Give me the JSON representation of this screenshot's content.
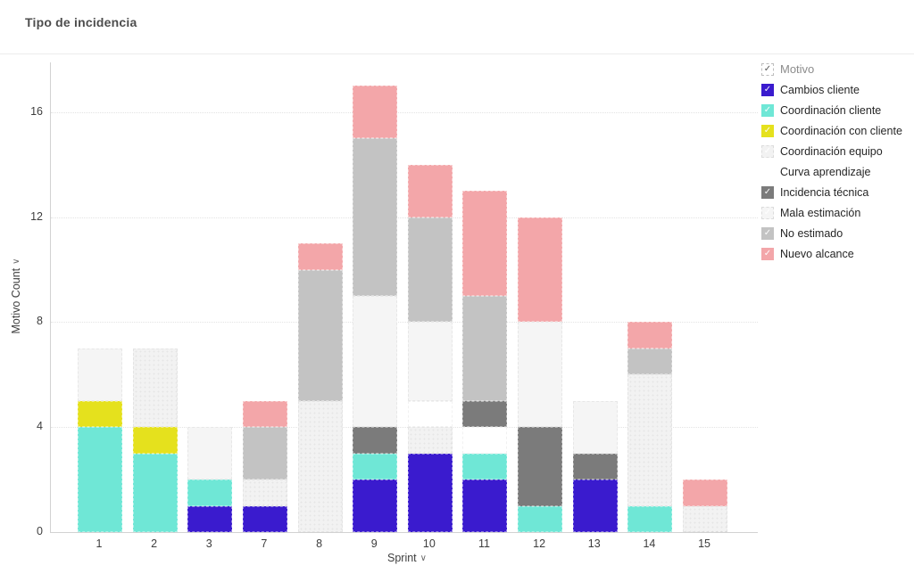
{
  "title": "Tipo de incidencia",
  "legend": {
    "header": {
      "label": "Motivo",
      "checked": true,
      "check_icon": "check-icon"
    }
  },
  "axes": {
    "y_title": "Motivo Count",
    "x_title": "Sprint",
    "y_title_chevron": "chevron-down-icon",
    "x_title_chevron": "chevron-down-icon"
  },
  "chart_data": {
    "type": "bar",
    "stacked": true,
    "title": "Tipo de incidencia",
    "xlabel": "Sprint",
    "ylabel": "Motivo Count",
    "categories": [
      "1",
      "2",
      "3",
      "7",
      "8",
      "9",
      "10",
      "11",
      "12",
      "13",
      "14",
      "15"
    ],
    "yticks": [
      0,
      4,
      8,
      12,
      16
    ],
    "ylim": [
      0,
      17.9
    ],
    "grid": "horizontal",
    "legend_position": "right",
    "totals": [
      7,
      7,
      4,
      5,
      11,
      17,
      14,
      13,
      12,
      5,
      8,
      2
    ],
    "series": [
      {
        "name": "Cambios cliente",
        "color": "#3a1bce",
        "pattern": "solid",
        "values": [
          0,
          0,
          1,
          1,
          0,
          2,
          3,
          2,
          0,
          2,
          0,
          0
        ]
      },
      {
        "name": "Coordinación cliente",
        "color": "#6fe7d6",
        "pattern": "solid",
        "values": [
          4,
          3,
          1,
          0,
          0,
          1,
          0,
          1,
          1,
          0,
          1,
          0
        ]
      },
      {
        "name": "Coordinación con cliente",
        "color": "#e5e11d",
        "pattern": "solid",
        "values": [
          1,
          1,
          0,
          0,
          0,
          0,
          0,
          0,
          0,
          0,
          0,
          0
        ]
      },
      {
        "name": "Coordinación equipo",
        "color": "#f2f2f2",
        "pattern": "dots",
        "values": [
          0,
          3,
          0,
          1,
          5,
          0,
          1,
          0,
          0,
          0,
          5,
          1
        ]
      },
      {
        "name": "Curva aprendizaje",
        "color": "#ffffff",
        "pattern": "solid",
        "values": [
          0,
          0,
          0,
          0,
          0,
          0,
          1,
          1,
          0,
          0,
          0,
          0
        ]
      },
      {
        "name": "Incidencia técnica",
        "color": "#7b7b7b",
        "pattern": "solid",
        "values": [
          0,
          0,
          0,
          0,
          0,
          1,
          0,
          1,
          3,
          1,
          0,
          0
        ]
      },
      {
        "name": "Mala estimación",
        "color": "#f5f5f5",
        "pattern": "solid",
        "values": [
          2,
          0,
          2,
          0,
          0,
          5,
          3,
          0,
          4,
          2,
          0,
          0
        ]
      },
      {
        "name": "No estimado",
        "color": "#c3c3c3",
        "pattern": "solid",
        "values": [
          0,
          0,
          0,
          2,
          5,
          6,
          4,
          4,
          0,
          0,
          1,
          0
        ]
      },
      {
        "name": "Nuevo alcance",
        "color": "#f3a6a9",
        "pattern": "solid",
        "values": [
          0,
          0,
          0,
          1,
          1,
          2,
          2,
          4,
          4,
          0,
          1,
          1
        ]
      }
    ]
  }
}
